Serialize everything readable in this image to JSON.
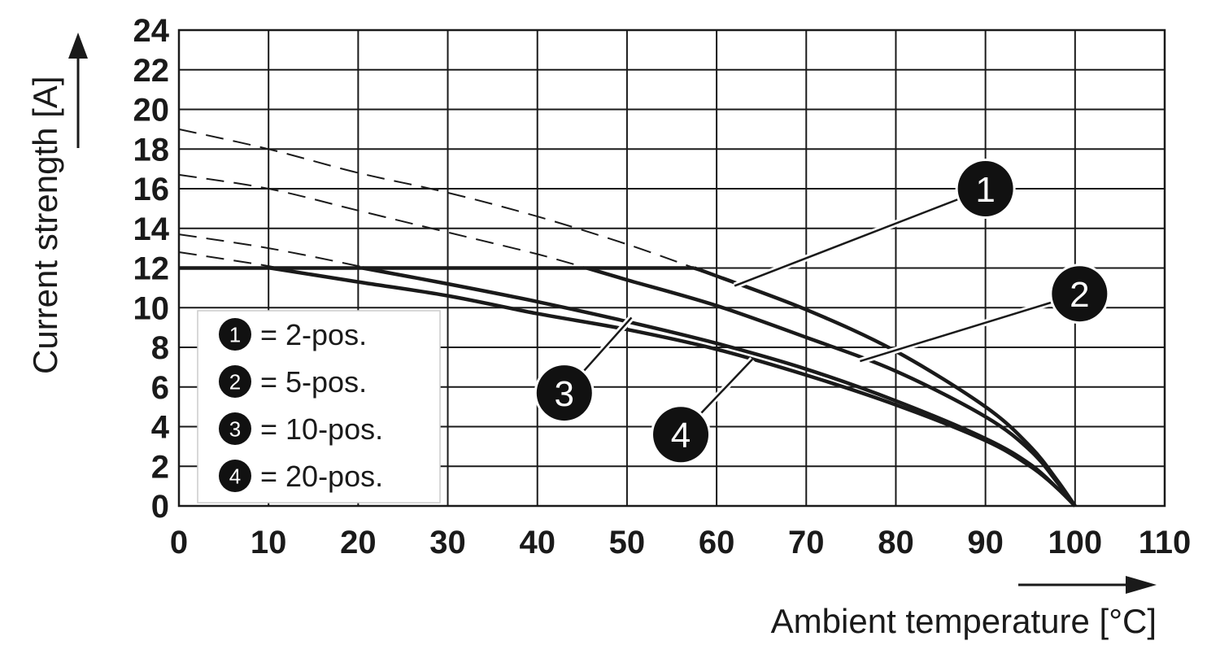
{
  "chart_data": {
    "type": "line",
    "xlabel": "Ambient temperature [°C]",
    "ylabel": "Current strength [A]",
    "xlim": [
      0,
      110
    ],
    "ylim": [
      0,
      24
    ],
    "x_ticks": [
      0,
      10,
      20,
      30,
      40,
      50,
      60,
      70,
      80,
      90,
      100,
      110
    ],
    "y_ticks": [
      0,
      2,
      4,
      6,
      8,
      10,
      12,
      14,
      16,
      18,
      20,
      22,
      24
    ],
    "grid": true,
    "max_current": 12,
    "series": [
      {
        "name": "2-pos.",
        "badge": "1",
        "x": [
          0,
          10,
          20,
          30,
          40,
          50,
          57.5,
          60,
          70,
          80,
          90,
          95,
          98,
          100
        ],
        "y": [
          19.0,
          18.0,
          16.8,
          15.8,
          14.6,
          13.2,
          12.0,
          11.6,
          9.9,
          7.8,
          5.0,
          3.0,
          1.3,
          0
        ],
        "dashed_until_x": 57.5
      },
      {
        "name": "5-pos.",
        "badge": "2",
        "x": [
          0,
          10,
          20,
          30,
          40,
          45.5,
          50,
          60,
          70,
          80,
          90,
          95,
          98,
          100
        ],
        "y": [
          16.7,
          16.0,
          14.9,
          13.8,
          12.7,
          12.0,
          11.4,
          10.1,
          8.5,
          6.8,
          4.5,
          2.8,
          1.2,
          0
        ],
        "dashed_until_x": 45.5
      },
      {
        "name": "10-pos.",
        "badge": "3",
        "x": [
          0,
          10,
          20,
          20.5,
          30,
          40,
          50,
          60,
          70,
          80,
          90,
          95,
          98,
          100
        ],
        "y": [
          13.7,
          13.0,
          12.1,
          12.0,
          11.2,
          10.3,
          9.3,
          8.2,
          6.9,
          5.3,
          3.4,
          2.1,
          0.9,
          0
        ],
        "dashed_until_x": 20.5
      },
      {
        "name": "20-pos.",
        "badge": "4",
        "x": [
          0,
          10,
          10.2,
          20,
          30,
          40,
          50,
          60,
          70,
          80,
          90,
          95,
          98,
          100
        ],
        "y": [
          12.8,
          12.1,
          12.0,
          11.3,
          10.6,
          9.7,
          8.9,
          7.9,
          6.6,
          5.1,
          3.3,
          2.0,
          0.9,
          0
        ],
        "dashed_until_x": 10.2
      }
    ],
    "legend": [
      {
        "badge": "1",
        "text": "= 2-pos."
      },
      {
        "badge": "2",
        "text": "= 5-pos."
      },
      {
        "badge": "3",
        "text": "= 10-pos."
      },
      {
        "badge": "4",
        "text": "= 20-pos."
      }
    ],
    "callouts": [
      {
        "badge": "1",
        "at": [
          90,
          16.0
        ],
        "points_to": [
          62,
          11.1
        ]
      },
      {
        "badge": "2",
        "at": [
          100.5,
          10.7
        ],
        "points_to": [
          76,
          7.3
        ]
      },
      {
        "badge": "3",
        "at": [
          43,
          5.7
        ],
        "points_to": [
          50.5,
          9.5
        ]
      },
      {
        "badge": "4",
        "at": [
          56,
          3.6
        ],
        "points_to": [
          64,
          7.4
        ]
      }
    ]
  }
}
